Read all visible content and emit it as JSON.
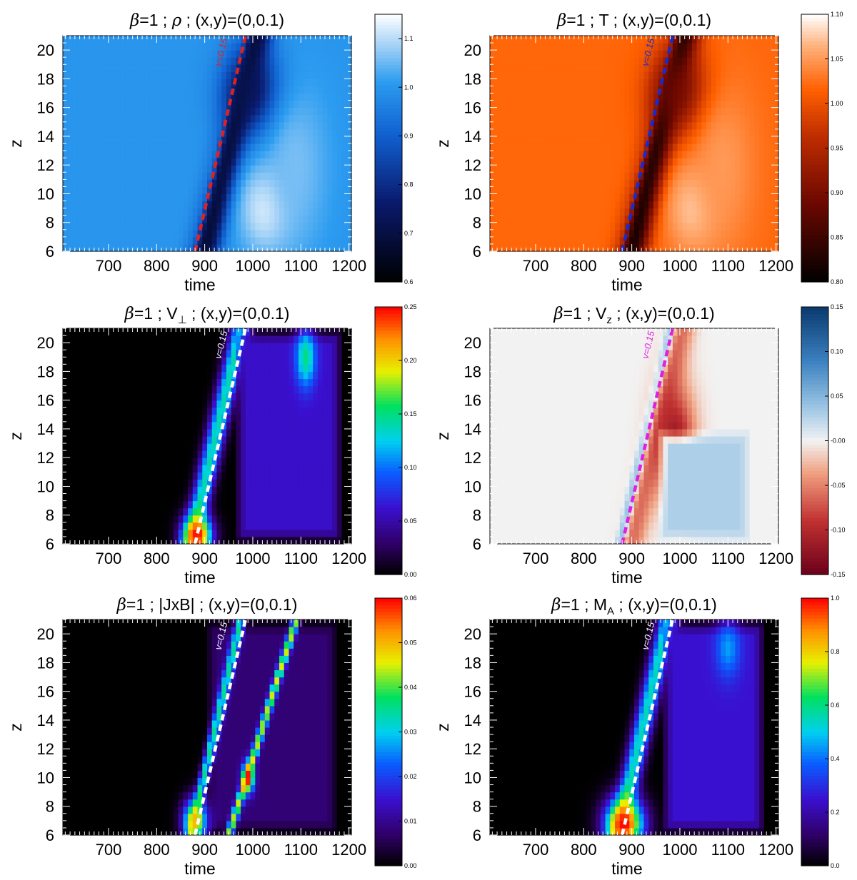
{
  "figure": {
    "axis_color": "#000000"
  },
  "chart_data": [
    {
      "type": "heatmap",
      "title_parts": [
        "β",
        "=1 ; ",
        "ρ",
        " ; (x,y)=(0,0.1)"
      ],
      "xlabel": "time",
      "ylabel": "z",
      "xlim": [
        605,
        1205
      ],
      "ylim": [
        6,
        21
      ],
      "xticks": [
        700,
        800,
        900,
        1000,
        1100,
        1200
      ],
      "yticks": [
        6,
        8,
        10,
        12,
        14,
        16,
        18,
        20
      ],
      "colormap": "blue",
      "colorbar": {
        "min": 0.6,
        "max": 1.15,
        "ticks": [
          "0.6",
          "0.7",
          "0.8",
          "0.9",
          "1.0",
          "1.1"
        ],
        "values": [
          0.6,
          0.7,
          0.8,
          0.9,
          1.0,
          1.1
        ]
      },
      "background_value": 1.0,
      "features": [
        {
          "kind": "band",
          "t0": 880,
          "z0": 6,
          "t1": 985,
          "z1": 21,
          "width": 14,
          "value": 1.12
        },
        {
          "kind": "band",
          "t0": 900,
          "z0": 6,
          "t1": 1010,
          "z1": 21,
          "width": 30,
          "value": 0.68
        },
        {
          "kind": "blob",
          "t": 1000,
          "z": 17,
          "rt": 60,
          "rz": 3,
          "value": 0.7
        },
        {
          "kind": "blob",
          "t": 1030,
          "z": 9,
          "rt": 55,
          "rz": 3,
          "value": 1.14
        },
        {
          "kind": "blob",
          "t": 1090,
          "z": 12,
          "rt": 70,
          "rz": 6,
          "value": 1.06
        }
      ],
      "annotation": {
        "label": "v=0.15",
        "t0": 880,
        "z0": 6,
        "t1": 985,
        "z1": 21,
        "color": "#dd2222"
      }
    },
    {
      "type": "heatmap",
      "title_parts": [
        "β",
        "=1 ; T ; (x,y)=(0,0.1)"
      ],
      "xlabel": "time",
      "ylabel": "z",
      "xlim": [
        605,
        1205
      ],
      "ylim": [
        6,
        21
      ],
      "xticks": [
        700,
        800,
        900,
        1000,
        1100,
        1200
      ],
      "yticks": [
        6,
        8,
        10,
        12,
        14,
        16,
        18,
        20
      ],
      "colormap": "redtemp",
      "colorbar": {
        "min": 0.8,
        "max": 1.1,
        "ticks": [
          "0.80",
          "0.85",
          "0.90",
          "0.95",
          "1.00",
          "1.05",
          "1.10"
        ],
        "values": [
          0.8,
          0.85,
          0.9,
          0.95,
          1.0,
          1.05,
          1.1
        ]
      },
      "background_value": 1.02,
      "features": [
        {
          "kind": "band",
          "t0": 880,
          "z0": 6,
          "t1": 985,
          "z1": 21,
          "width": 14,
          "value": 1.09
        },
        {
          "kind": "band",
          "t0": 900,
          "z0": 6,
          "t1": 1010,
          "z1": 21,
          "width": 30,
          "value": 0.82
        },
        {
          "kind": "blob",
          "t": 1000,
          "z": 17,
          "rt": 60,
          "rz": 3,
          "value": 0.88
        },
        {
          "kind": "blob",
          "t": 1030,
          "z": 9,
          "rt": 55,
          "rz": 3,
          "value": 1.08
        },
        {
          "kind": "blob",
          "t": 1090,
          "z": 12,
          "rt": 70,
          "rz": 6,
          "value": 1.05
        }
      ],
      "annotation": {
        "label": "v=0.15",
        "t0": 880,
        "z0": 6,
        "t1": 985,
        "z1": 21,
        "color": "#1a2bcc"
      }
    },
    {
      "type": "heatmap",
      "title_parts": [
        "β",
        "=1 ; V",
        "⊥",
        " ; (x,y)=(0,0.1)"
      ],
      "xlabel": "time",
      "ylabel": "z",
      "xlim": [
        605,
        1205
      ],
      "ylim": [
        6,
        21
      ],
      "xticks": [
        700,
        800,
        900,
        1000,
        1100,
        1200
      ],
      "yticks": [
        6,
        8,
        10,
        12,
        14,
        16,
        18,
        20
      ],
      "colormap": "rainbow",
      "colorbar": {
        "min": 0.0,
        "max": 0.25,
        "ticks": [
          "0.00",
          "0.05",
          "0.10",
          "0.15",
          "0.20",
          "0.25"
        ],
        "values": [
          0.0,
          0.05,
          0.1,
          0.15,
          0.2,
          0.25
        ]
      },
      "background_value": 0.0,
      "features": [
        {
          "kind": "band",
          "t0": 870,
          "z0": 6,
          "t1": 975,
          "z1": 21,
          "width": 20,
          "value": 0.14
        },
        {
          "kind": "region",
          "t0": 960,
          "z0": 6,
          "t1": 1190,
          "z1": 21,
          "value": 0.06
        },
        {
          "kind": "blob",
          "t": 885,
          "z": 6.6,
          "rt": 30,
          "rz": 1.4,
          "value": 0.25
        },
        {
          "kind": "blob",
          "t": 1110,
          "z": 19,
          "rt": 20,
          "rz": 2,
          "value": 0.15
        }
      ],
      "annotation": {
        "label": "v=0.15",
        "t0": 880,
        "z0": 6,
        "t1": 985,
        "z1": 21,
        "color": "#ffffff"
      }
    },
    {
      "type": "heatmap",
      "title_parts": [
        "β",
        "=1 ; V",
        "z",
        " ; (x,y)=(0,0.1)"
      ],
      "xlabel": "time",
      "ylabel": "z",
      "xlim": [
        605,
        1205
      ],
      "ylim": [
        6,
        21
      ],
      "xticks": [
        700,
        800,
        900,
        1000,
        1100,
        1200
      ],
      "yticks": [
        6,
        8,
        10,
        12,
        14,
        16,
        18,
        20
      ],
      "colormap": "diverging",
      "colorbar": {
        "min": -0.15,
        "max": 0.15,
        "ticks": [
          "-0.15",
          "-0.10",
          "-0.05",
          "-0.00",
          "0.05",
          "0.10",
          "0.15"
        ],
        "values": [
          -0.15,
          -0.1,
          -0.05,
          0.0,
          0.05,
          0.1,
          0.15
        ]
      },
      "background_value": 0.0,
      "features": [
        {
          "kind": "band",
          "t0": 880,
          "z0": 6,
          "t1": 985,
          "z1": 21,
          "width": 12,
          "value": 0.12
        },
        {
          "kind": "band",
          "t0": 900,
          "z0": 6,
          "t1": 1005,
          "z1": 21,
          "width": 26,
          "value": -0.06
        },
        {
          "kind": "blob",
          "t": 990,
          "z": 13,
          "rt": 40,
          "rz": 4,
          "value": -0.12
        },
        {
          "kind": "region",
          "t0": 950,
          "z0": 6,
          "t1": 1150,
          "z1": 14,
          "value": 0.03
        }
      ],
      "annotation": {
        "label": "v=0.15",
        "t0": 880,
        "z0": 6,
        "t1": 985,
        "z1": 21,
        "color": "#e020e0"
      }
    },
    {
      "type": "heatmap",
      "title_parts": [
        "β",
        "=1 ; |JxB| ; (x,y)=(0,0.1)"
      ],
      "xlabel": "time",
      "ylabel": "z",
      "xlim": [
        605,
        1205
      ],
      "ylim": [
        6,
        21
      ],
      "xticks": [
        700,
        800,
        900,
        1000,
        1100,
        1200
      ],
      "yticks": [
        6,
        8,
        10,
        12,
        14,
        16,
        18,
        20
      ],
      "colormap": "rainbow",
      "colorbar": {
        "min": 0.0,
        "max": 0.06,
        "ticks": [
          "0.00",
          "0.01",
          "0.02",
          "0.03",
          "0.04",
          "0.05",
          "0.06"
        ],
        "values": [
          0.0,
          0.01,
          0.02,
          0.03,
          0.04,
          0.05,
          0.06
        ]
      },
      "background_value": 0.0,
      "features": [
        {
          "kind": "region",
          "t0": 900,
          "z0": 6,
          "t1": 1180,
          "z1": 21,
          "value": 0.008
        },
        {
          "kind": "band",
          "t0": 870,
          "z0": 6,
          "t1": 975,
          "z1": 21,
          "width": 10,
          "value": 0.035
        },
        {
          "kind": "band",
          "t0": 950,
          "z0": 6,
          "t1": 1090,
          "z1": 21,
          "width": 8,
          "value": 0.045
        },
        {
          "kind": "blob",
          "t": 880,
          "z": 7,
          "rt": 25,
          "rz": 1.5,
          "value": 0.05
        },
        {
          "kind": "blob",
          "t": 990,
          "z": 10,
          "rt": 12,
          "rz": 1,
          "value": 0.06
        }
      ],
      "annotation": {
        "label": "v=0.15",
        "t0": 880,
        "z0": 6,
        "t1": 985,
        "z1": 21,
        "color": "#ffffff"
      }
    },
    {
      "type": "heatmap",
      "title_parts": [
        "β",
        "=1 ; M",
        "A",
        " ; (x,y)=(0,0.1)"
      ],
      "xlabel": "time",
      "ylabel": "z",
      "xlim": [
        605,
        1205
      ],
      "ylim": [
        6,
        21
      ],
      "xticks": [
        700,
        800,
        900,
        1000,
        1100,
        1200
      ],
      "yticks": [
        6,
        8,
        10,
        12,
        14,
        16,
        18,
        20
      ],
      "colormap": "rainbow",
      "colorbar": {
        "min": 0.0,
        "max": 1.0,
        "ticks": [
          "0.0",
          "0.2",
          "0.4",
          "0.6",
          "0.8",
          "1.0"
        ],
        "values": [
          0.0,
          0.2,
          0.4,
          0.6,
          0.8,
          1.0
        ]
      },
      "background_value": 0.0,
      "features": [
        {
          "kind": "band",
          "t0": 870,
          "z0": 6,
          "t1": 975,
          "z1": 21,
          "width": 20,
          "value": 0.55
        },
        {
          "kind": "region",
          "t0": 960,
          "z0": 6,
          "t1": 1180,
          "z1": 21,
          "value": 0.25
        },
        {
          "kind": "blob",
          "t": 885,
          "z": 6.8,
          "rt": 40,
          "rz": 1.8,
          "value": 1.0
        },
        {
          "kind": "blob",
          "t": 1100,
          "z": 19,
          "rt": 25,
          "rz": 2,
          "value": 0.45
        }
      ],
      "annotation": {
        "label": "v=0.15",
        "t0": 880,
        "z0": 6,
        "t1": 985,
        "z1": 21,
        "color": "#ffffff"
      }
    }
  ]
}
